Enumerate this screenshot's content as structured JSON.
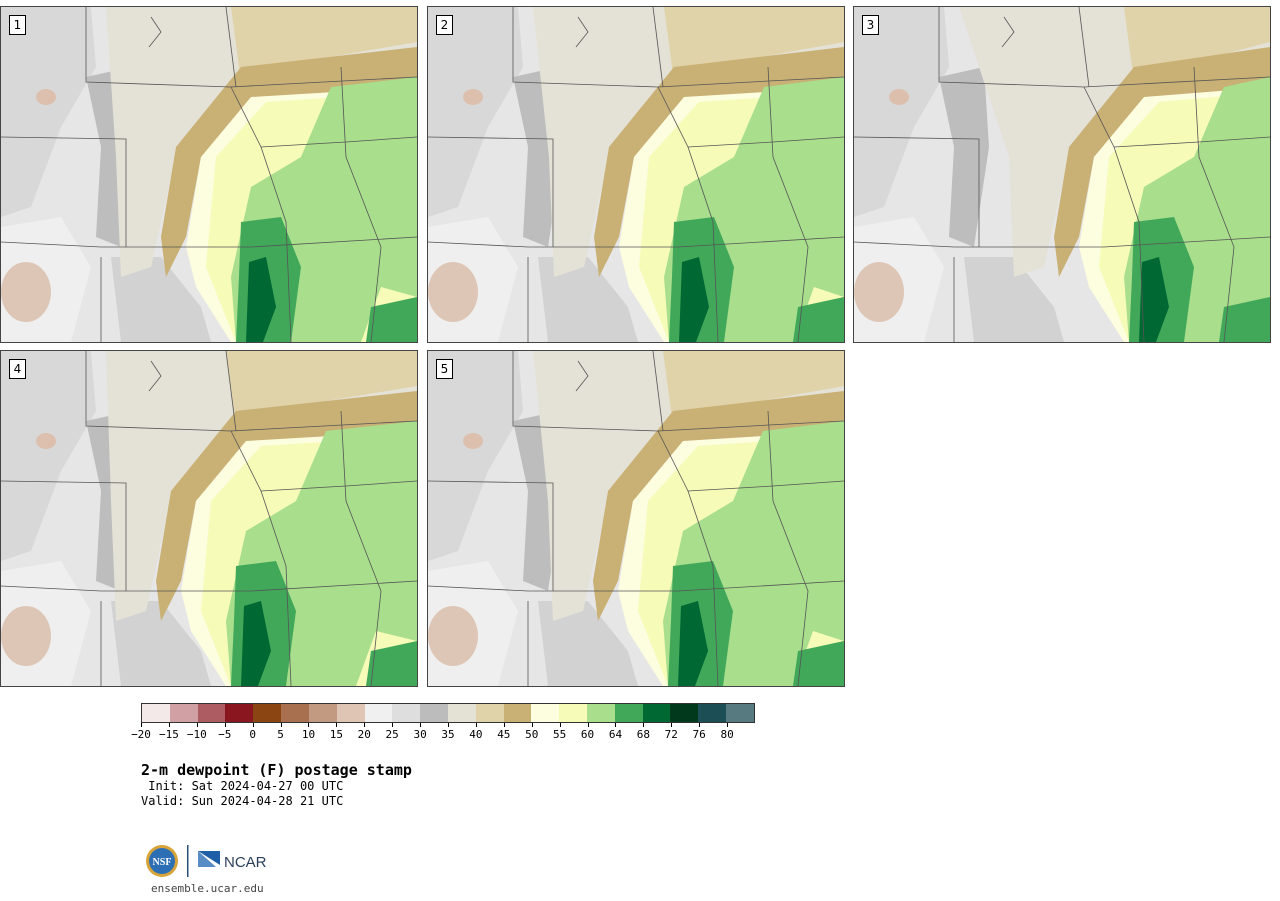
{
  "panels": [
    {
      "label": "1"
    },
    {
      "label": "2"
    },
    {
      "label": "3"
    },
    {
      "label": "4"
    },
    {
      "label": "5"
    }
  ],
  "colorbar": {
    "colors": [
      "#f3e9e9",
      "#d1a0a5",
      "#ad5d62",
      "#8a1620",
      "#8a4513",
      "#a8704f",
      "#c29a82",
      "#dec5b4",
      "#f0f0f0",
      "#dedede",
      "#bcbcbc",
      "#e3e2d5",
      "#e0d2a9",
      "#c9b074",
      "#fdfde0",
      "#f6fbb8",
      "#a8de8c",
      "#41a85a",
      "#006832",
      "#00391c",
      "#1c4f55",
      "#567a80"
    ],
    "tick_labels": [
      "−20",
      "−15",
      "−10",
      "−5",
      "0",
      "5",
      "10",
      "15",
      "20",
      "25",
      "30",
      "35",
      "40",
      "45",
      "50",
      "55",
      "60",
      "64",
      "68",
      "72",
      "76",
      "80"
    ]
  },
  "title": "2-m dewpoint (F) postage stamp",
  "init": " Init: Sat 2024-04-27 00 UTC",
  "valid": "Valid: Sun 2024-04-28 21 UTC",
  "logo": {
    "left": "NSF",
    "right": "NCAR"
  },
  "site": "ensemble.ucar.edu"
}
